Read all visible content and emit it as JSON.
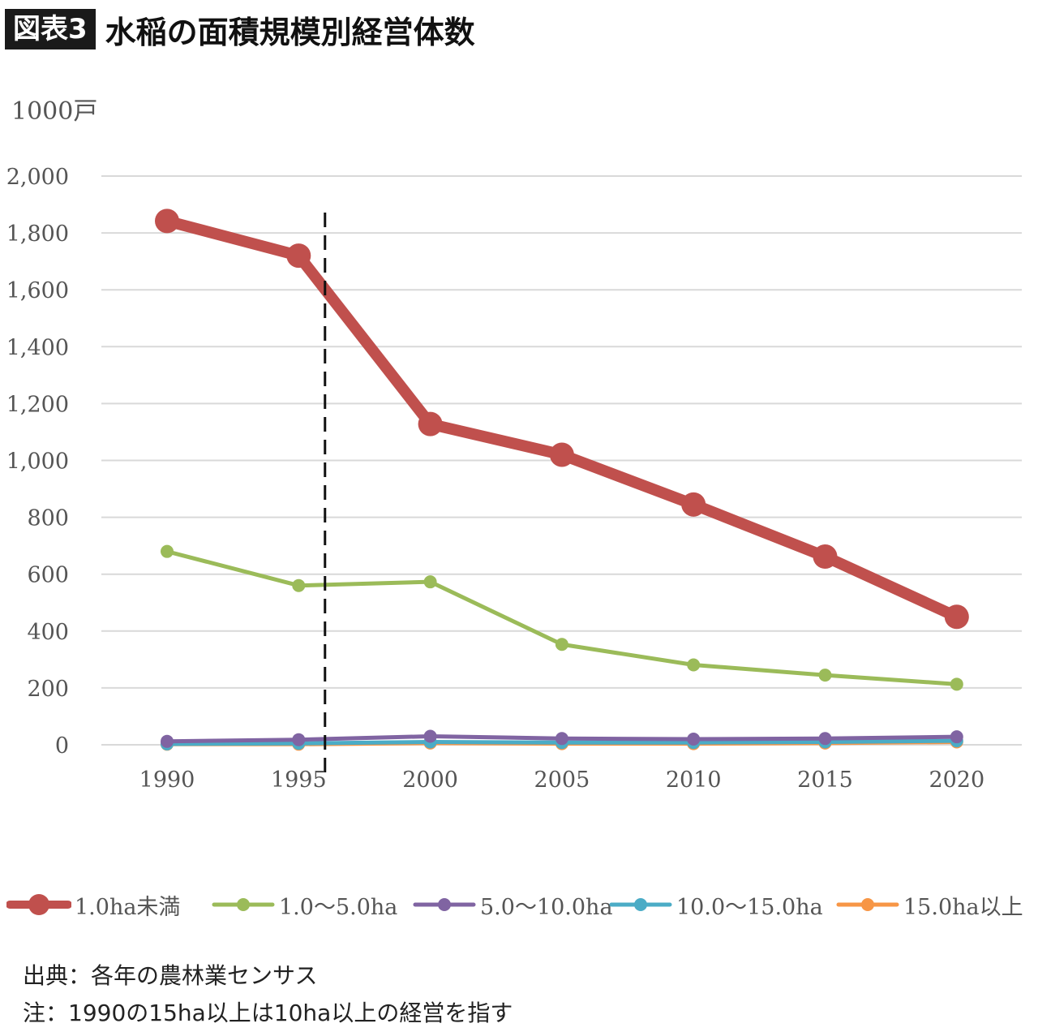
{
  "header": {
    "badge": "図表3",
    "title": "水稲の面積規模別経営体数"
  },
  "unit_label": "1000戸",
  "chart_data": {
    "type": "line",
    "title": "水稲の面積規模別経営体数",
    "ylabel": "1000戸",
    "xlabel": "",
    "ylim": [
      0,
      2000
    ],
    "y_ticks": [
      "0",
      "200",
      "400",
      "600",
      "800",
      "1,000",
      "1,200",
      "1,400",
      "1,600",
      "1,800",
      "2,000"
    ],
    "x": [
      "1990",
      "1995",
      "2000",
      "2005",
      "2010",
      "2015",
      "2020"
    ],
    "grid": true,
    "legend_position": "bottom",
    "reference_line": {
      "x": 1996,
      "style": "dashed"
    },
    "series": [
      {
        "name": "1.0ha未満",
        "color": "#c0504d",
        "values": [
          1842,
          1720,
          1128,
          1020,
          845,
          662,
          450
        ]
      },
      {
        "name": "1.0～5.0ha",
        "color": "#9bbb59",
        "values": [
          680,
          560,
          573,
          353,
          281,
          245,
          213
        ]
      },
      {
        "name": "5.0～10.0ha",
        "color": "#8064a2",
        "values": [
          12,
          18,
          30,
          22,
          20,
          22,
          28
        ]
      },
      {
        "name": "10.0～15.0ha",
        "color": "#4bacc6",
        "values": [
          3,
          5,
          10,
          8,
          8,
          10,
          14
        ]
      },
      {
        "name": "15.0ha以上",
        "color": "#f79646",
        "values": [
          2,
          2,
          6,
          4,
          4,
          6,
          10
        ]
      }
    ]
  },
  "notes": {
    "source": "出典：各年の農林業センサス",
    "note": "注：1990の15ha以上は10ha以上の経営を指す"
  }
}
